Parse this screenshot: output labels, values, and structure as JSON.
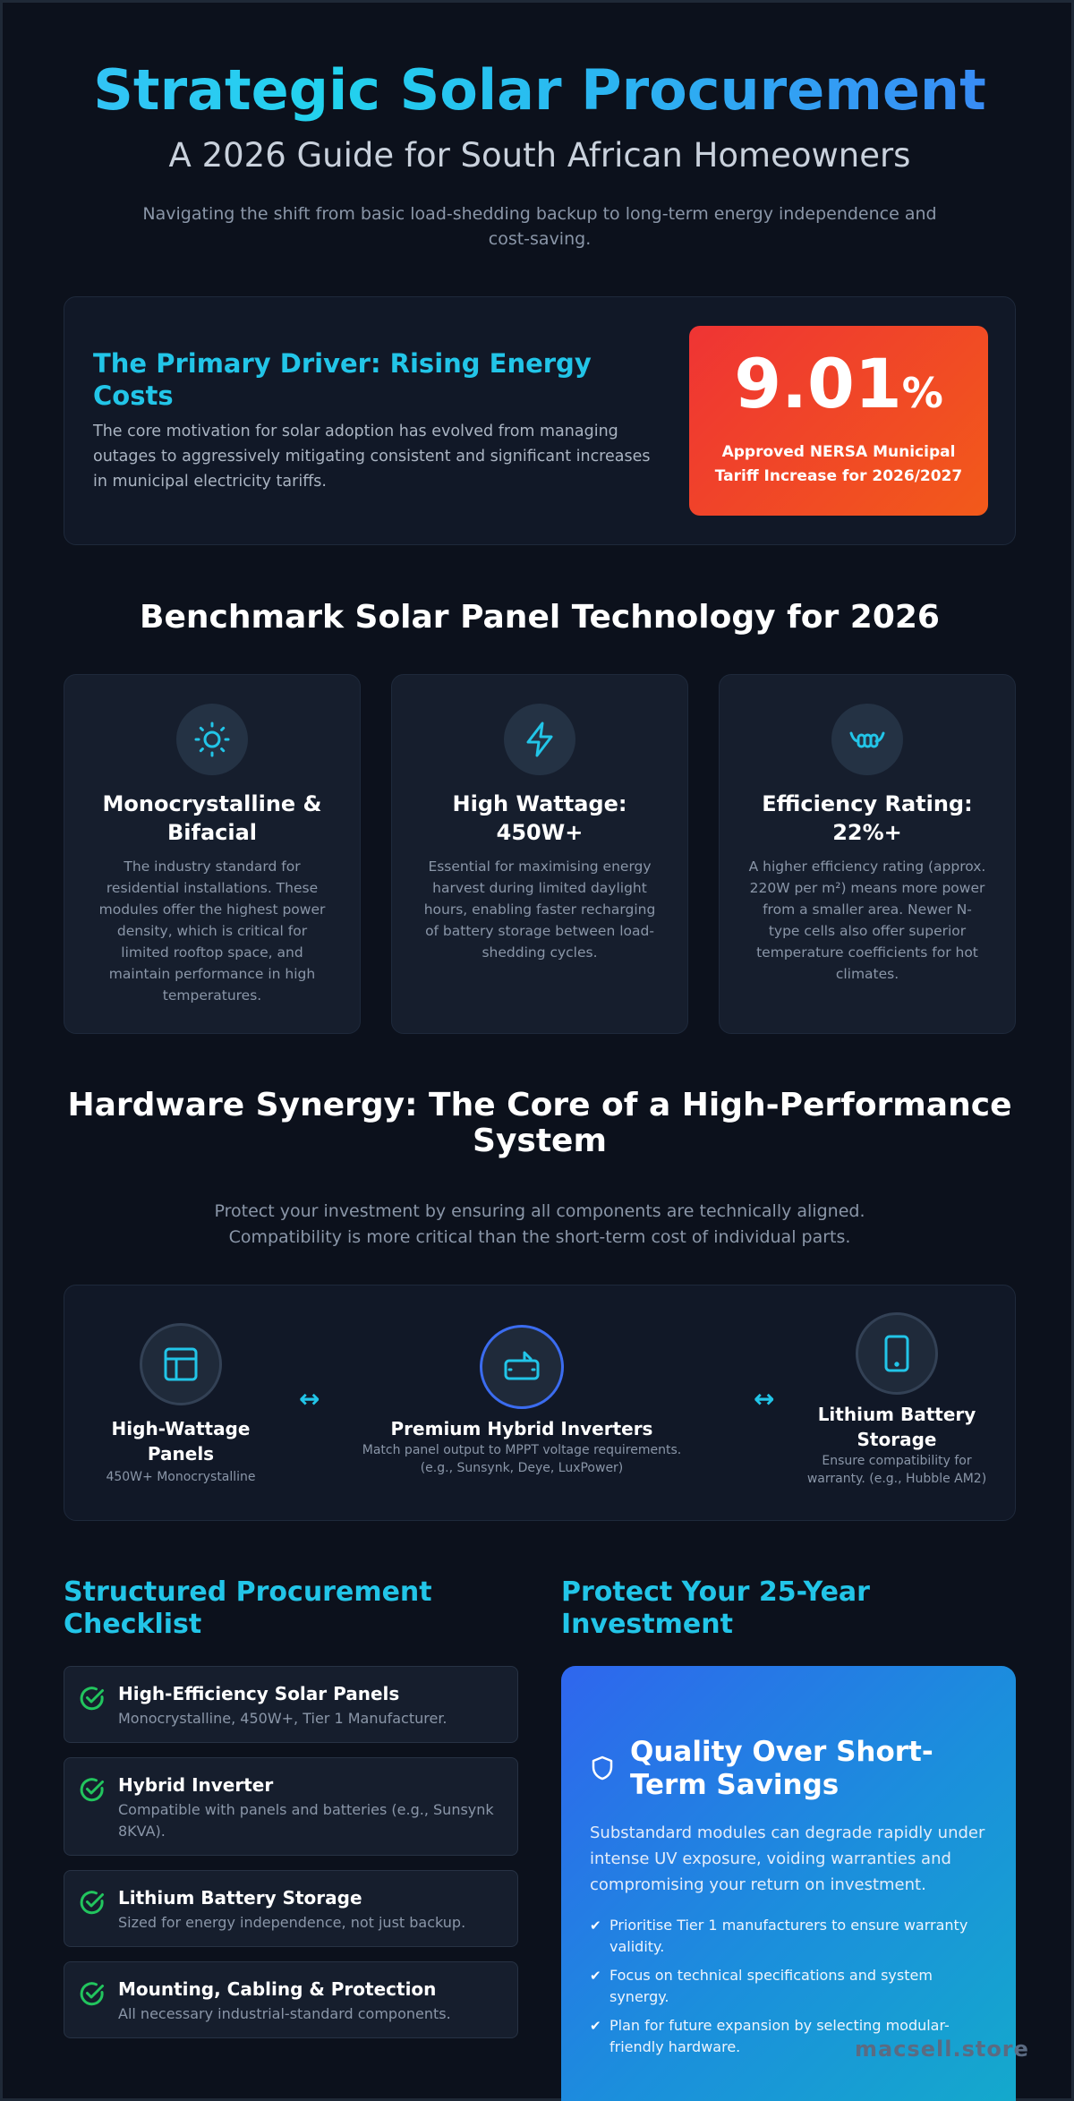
{
  "hero": {
    "title": "Strategic Solar Procurement",
    "subtitle": "A 2026 Guide for South African Homeowners",
    "intro": "Navigating the shift from basic load-shedding backup to long-term energy independence and cost-saving."
  },
  "driver": {
    "heading": "The Primary Driver: Rising Energy Costs",
    "body": "The core motivation for solar adoption has evolved from managing outages to aggressively mitigating consistent and significant increases in municipal electricity tariffs.",
    "stat_value": "9.01",
    "stat_unit": "%",
    "stat_label": "Approved NERSA Municipal Tariff Increase for 2026/2027"
  },
  "benchmark": {
    "title": "Benchmark Solar Panel Technology for 2026",
    "cards": [
      {
        "icon": "sun-icon",
        "title": "Monocrystalline & Bifacial",
        "body": "The industry standard for residential installations. These modules offer the highest power density, which is critical for limited rooftop space, and maintain performance in high temperatures."
      },
      {
        "icon": "lightning-icon",
        "title": "High Wattage: 450W+",
        "body": "Essential for maximising energy harvest during limited daylight hours, enabling faster recharging of battery storage between load-shedding cycles."
      },
      {
        "icon": "coil-icon",
        "title": "Efficiency Rating: 22%+",
        "body": "A higher efficiency rating (approx. 220W per m²) means more power from a smaller area. Newer N-type cells also offer superior temperature coefficients for hot climates."
      }
    ]
  },
  "synergy": {
    "title": "Hardware Synergy: The Core of a High-Performance System",
    "subtitle": "Protect your investment by ensuring all components are technically aligned. Compatibility is more critical than the short-term cost of individual parts.",
    "arrow": "↔",
    "nodes": [
      {
        "icon": "panel-icon",
        "title": "High-Wattage Panels",
        "sub": "450W+ Monocrystalline"
      },
      {
        "icon": "inverter-icon",
        "title": "Premium Hybrid Inverters",
        "sub": "Match panel output to MPPT voltage requirements. (e.g., Sunsynk, Deye, LuxPower)"
      },
      {
        "icon": "battery-icon",
        "title": "Lithium Battery Storage",
        "sub": "Ensure compatibility for warranty. (e.g., Hubble AM2)"
      }
    ]
  },
  "checklist": {
    "title": "Structured Procurement Checklist",
    "items": [
      {
        "title": "High-Efficiency Solar Panels",
        "desc": "Monocrystalline, 450W+, Tier 1 Manufacturer."
      },
      {
        "title": "Hybrid Inverter",
        "desc": "Compatible with panels and batteries (e.g., Sunsynk 8KVA)."
      },
      {
        "title": "Lithium Battery Storage",
        "desc": "Sized for energy independence, not just backup."
      },
      {
        "title": "Mounting, Cabling & Protection",
        "desc": "All necessary industrial-standard components."
      }
    ]
  },
  "protect": {
    "title": "Protect Your 25-Year Investment",
    "card_title": "Quality Over Short-Term Savings",
    "body": "Substandard modules can degrade rapidly under intense UV exposure, voiding warranties and compromising your return on investment.",
    "tick": "✔",
    "bullets": [
      "Prioritise Tier 1 manufacturers to ensure warranty validity.",
      "Focus on technical specifications and system synergy.",
      "Plan for future expansion by selecting modular-friendly hardware."
    ]
  },
  "watermark": "macsell.store",
  "colors": {
    "background": "#0c111c",
    "accent_cyan": "#22c5e8",
    "stat_red": "#ef3434",
    "stat_orange": "#f25a1a",
    "check_green": "#22c55e",
    "protect_blue": "#2f66ee"
  }
}
